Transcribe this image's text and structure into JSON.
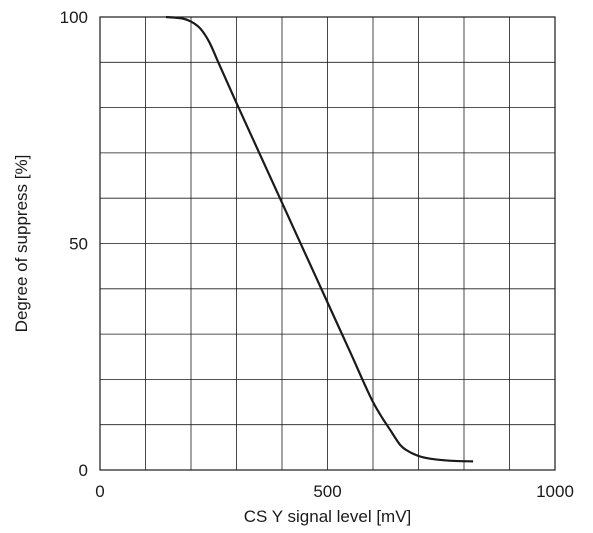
{
  "chart_data": {
    "type": "line",
    "xlabel": "CS Y signal level [mV]",
    "ylabel": "Degree of suppress [%]",
    "xlim": [
      0,
      1000
    ],
    "ylim": [
      0,
      100
    ],
    "x_ticks": [
      0,
      500,
      1000
    ],
    "x_tick_labels": [
      "0",
      "500",
      "1000"
    ],
    "y_ticks": [
      0,
      50,
      100
    ],
    "y_tick_labels": [
      "0",
      "50",
      "100"
    ],
    "x_grid_step": 100,
    "y_grid_step": 10,
    "grid": true,
    "series": [
      {
        "color": "#1a1a1a",
        "x": [
          145,
          180,
          200,
          220,
          240,
          260,
          300,
          350,
          400,
          450,
          500,
          550,
          600,
          640,
          660,
          675,
          690,
          710,
          740,
          780,
          820
        ],
        "y": [
          100,
          99.7,
          99,
          97.5,
          94.5,
          90,
          81,
          70,
          59,
          48,
          37,
          26,
          15,
          8.5,
          5.5,
          4.3,
          3.5,
          2.8,
          2.3,
          2.0,
          1.9
        ]
      }
    ]
  }
}
